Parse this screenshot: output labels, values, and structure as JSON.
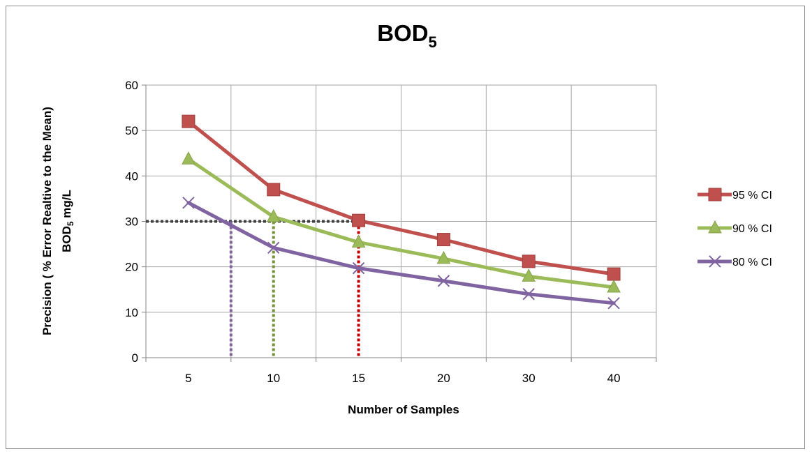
{
  "chart_data": {
    "type": "line",
    "title": "BOD",
    "title_subscript": "5",
    "xlabel": "Number of Samples",
    "ylabel_line1": "Precision ( % Error Realtive to the Mean)",
    "ylabel_line2_prefix": "BOD",
    "ylabel_line2_sub": "5",
    "ylabel_line2_suffix": " mg/L",
    "categories": [
      "5",
      "10",
      "15",
      "20",
      "30",
      "40"
    ],
    "ylim": [
      0,
      60
    ],
    "yticks": [
      "0",
      "10",
      "20",
      "30",
      "40",
      "50",
      "60"
    ],
    "grid": true,
    "legend_position": "right",
    "series": [
      {
        "name": "95 % CI",
        "values": [
          52,
          37,
          30.2,
          26,
          21.2,
          18.4
        ],
        "color": "#c0504d",
        "marker": "square"
      },
      {
        "name": "90 % CI",
        "values": [
          43.7,
          31,
          25.4,
          21.8,
          17.9,
          15.5
        ],
        "color": "#9bbb59",
        "marker": "triangle"
      },
      {
        "name": "80 % CI",
        "values": [
          34.1,
          24.2,
          19.7,
          16.9,
          14,
          12
        ],
        "color": "#8064a2",
        "marker": "x"
      }
    ],
    "annotations": {
      "threshold": {
        "y": 30,
        "x_end": 3,
        "color": "#404040"
      },
      "drop_lines": [
        {
          "x": 1.5,
          "y_top": 30,
          "color": "#8064a2"
        },
        {
          "x": 2,
          "y_top": 30,
          "color": "#77933c"
        },
        {
          "x": 3,
          "y_top": 30,
          "color": "#c00000"
        }
      ]
    }
  }
}
